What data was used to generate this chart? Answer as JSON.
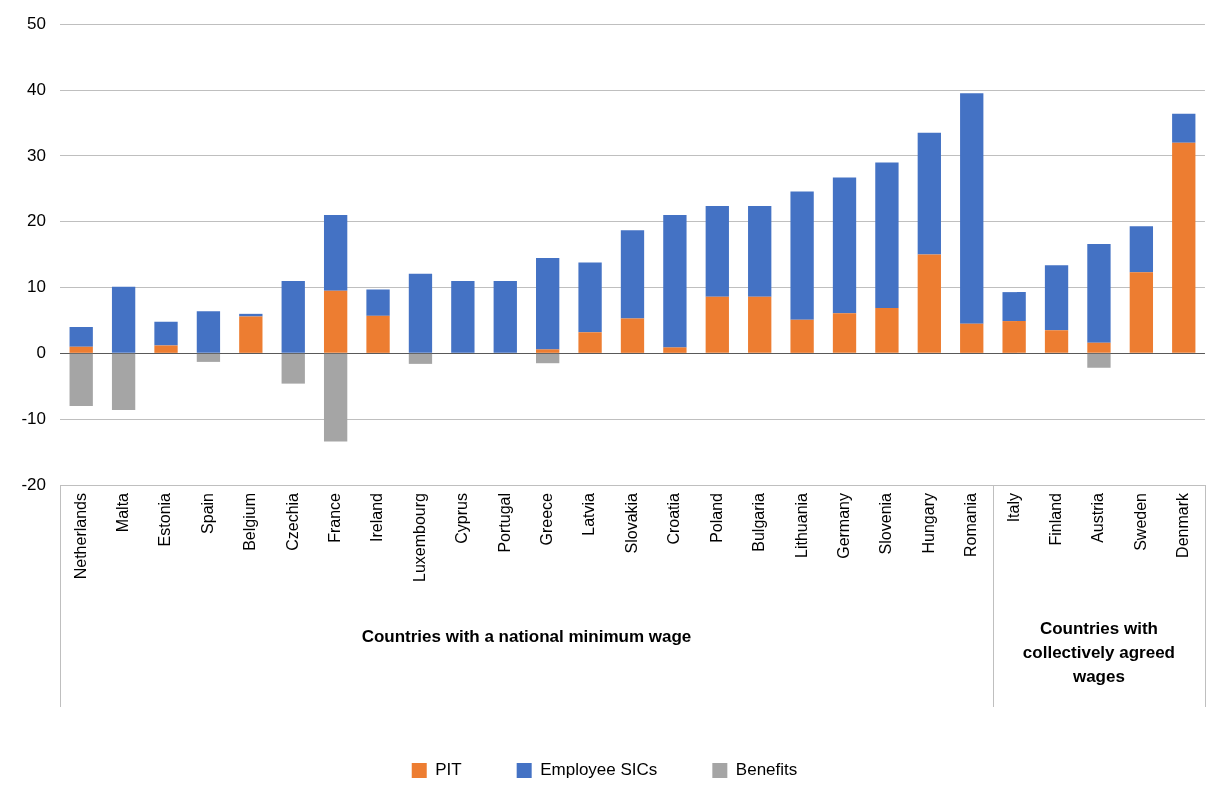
{
  "chart_data": {
    "type": "bar",
    "stacked": true,
    "categories": [
      "Netherlands",
      "Malta",
      "Estonia",
      "Spain",
      "Belgium",
      "Czechia",
      "France",
      "Ireland",
      "Luxembourg",
      "Cyprus",
      "Portugal",
      "Greece",
      "Latvia",
      "Slovakia",
      "Croatia",
      "Poland",
      "Bulgaria",
      "Lithuania",
      "Germany",
      "Slovenia",
      "Hungary",
      "Romania",
      "Italy",
      "Finland",
      "Austria",
      "Sweden",
      "Denmark"
    ],
    "series": [
      {
        "name": "PIT",
        "color": "#ed7d31",
        "values": [
          1.0,
          null,
          1.2,
          null,
          5.6,
          null,
          9.5,
          5.7,
          0,
          0,
          0,
          0.6,
          3.2,
          5.3,
          0.9,
          8.6,
          8.6,
          5.1,
          6.1,
          6.9,
          15.0,
          4.5,
          4.9,
          3.5,
          1.6,
          12.3,
          32.0
        ]
      },
      {
        "name": "Employee SICs",
        "color": "#4472c4",
        "values": [
          3.0,
          10.1,
          3.6,
          6.4,
          0.4,
          11.0,
          11.5,
          4.0,
          12.1,
          11.0,
          11.0,
          13.9,
          10.6,
          13.4,
          20.1,
          13.8,
          13.8,
          19.5,
          20.6,
          22.1,
          18.5,
          35.0,
          4.4,
          9.9,
          15.0,
          7.0,
          4.4
        ]
      },
      {
        "name": "Benefits",
        "color": "#a5a5a5",
        "values": [
          -8.0,
          -8.6,
          0,
          -1.3,
          0,
          -4.6,
          -13.4,
          0,
          -1.6,
          0,
          0,
          -1.5,
          0,
          0,
          0,
          0,
          0,
          0,
          0,
          0,
          0,
          0,
          0,
          0,
          -2.2,
          0,
          0
        ]
      }
    ],
    "ylim": [
      -20,
      50
    ],
    "yticks": [
      -20,
      -10,
      0,
      10,
      20,
      30,
      40,
      50
    ],
    "grid": "y",
    "legend": "bottom",
    "annotations": [
      "Countries with a national minimum wage",
      "Countries with collectively agreed wages"
    ]
  }
}
